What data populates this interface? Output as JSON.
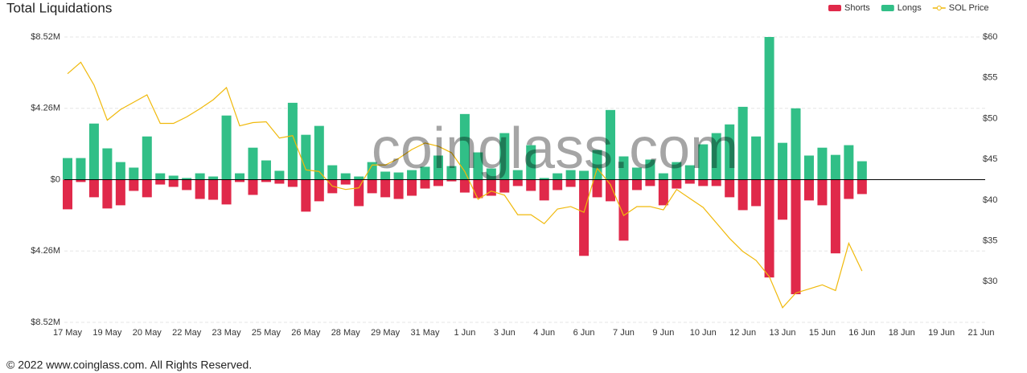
{
  "chart_data": {
    "type": "bar",
    "title": "Total Liquidations",
    "watermark": "coinglass.com",
    "footer": "© 2022 www.coinglass.com. All Rights Reserved.",
    "categories": [
      "17 May",
      null,
      null,
      "19 May",
      null,
      null,
      "20 May",
      null,
      null,
      "22 May",
      null,
      null,
      "23 May",
      null,
      null,
      "25 May",
      null,
      null,
      "26 May",
      null,
      null,
      "28 May",
      null,
      null,
      "29 May",
      null,
      null,
      "31 May",
      null,
      null,
      "1 Jun",
      null,
      null,
      "3 Jun",
      null,
      null,
      "4 Jun",
      null,
      null,
      "6 Jun",
      null,
      null,
      "7 Jun",
      null,
      null,
      "9 Jun",
      null,
      null,
      "10 Jun",
      null,
      null,
      "12 Jun",
      null,
      null,
      "13 Jun",
      null,
      null,
      "15 Jun",
      null,
      null,
      "16 Jun",
      null,
      null,
      "18 Jun",
      null,
      null,
      "19 Jun",
      null,
      null,
      "21 Jun"
    ],
    "series": [
      {
        "name": "Shorts",
        "type": "bar",
        "color": "#e0294a",
        "values": [
          -1.77,
          -0.14,
          -1.05,
          -1.72,
          -1.53,
          -0.67,
          -1.05,
          -0.29,
          -0.43,
          -0.62,
          -1.15,
          -1.2,
          -1.48,
          -0.14,
          -0.91,
          -0.14,
          -0.24,
          -0.43,
          -1.91,
          -1.29,
          -0.81,
          -0.29,
          -1.58,
          -0.81,
          -1.05,
          -1.15,
          -0.96,
          -0.53,
          -0.38,
          -0.1,
          -0.77,
          -1.1,
          -0.96,
          -0.77,
          -0.38,
          -0.67,
          -1.24,
          -0.62,
          -0.43,
          -4.55,
          -1.05,
          -1.29,
          -3.64,
          -0.62,
          -0.38,
          -1.53,
          -0.53,
          -0.24,
          -0.38,
          -0.38,
          -1.05,
          -1.82,
          -1.58,
          -5.84,
          -2.39,
          -6.84,
          -1.24,
          -1.53,
          -4.4,
          -1.15,
          -0.86,
          null,
          null,
          null,
          null,
          null,
          null,
          null,
          null,
          null
        ]
      },
      {
        "name": "Longs",
        "type": "bar",
        "color": "#31bf87",
        "values": [
          1.29,
          1.29,
          3.35,
          1.87,
          1.05,
          0.72,
          2.58,
          0.38,
          0.24,
          0.1,
          0.38,
          0.19,
          3.83,
          0.38,
          1.91,
          1.15,
          0.53,
          4.59,
          2.68,
          3.21,
          0.86,
          0.38,
          0.19,
          1.05,
          0.48,
          0.43,
          0.57,
          0.77,
          1.44,
          0.81,
          3.92,
          1.63,
          0.67,
          2.78,
          0.57,
          2.06,
          0.1,
          0.38,
          0.57,
          0.53,
          1.77,
          4.16,
          1.39,
          0.72,
          1.2,
          0.38,
          1.05,
          0.86,
          2.11,
          2.78,
          3.3,
          4.35,
          2.58,
          8.52,
          2.2,
          4.26,
          1.44,
          1.91,
          1.48,
          2.06,
          1.1,
          null,
          null,
          null,
          null,
          null,
          null,
          null,
          null,
          null
        ]
      },
      {
        "name": "SOL Price",
        "type": "line",
        "axis": "y2",
        "color": "#f0b90b",
        "values": [
          55.5,
          56.9,
          54.1,
          49.8,
          51.1,
          52.0,
          52.9,
          49.4,
          49.4,
          50.2,
          51.2,
          52.3,
          53.8,
          49.1,
          49.5,
          49.6,
          47.6,
          47.9,
          43.7,
          43.5,
          41.7,
          41.3,
          41.5,
          44.3,
          44.3,
          45.1,
          46.2,
          47.0,
          46.6,
          45.8,
          43.5,
          40.1,
          41.1,
          40.6,
          38.2,
          38.2,
          37.1,
          38.9,
          39.2,
          38.5,
          43.9,
          41.9,
          38.1,
          39.2,
          39.2,
          38.8,
          41.3,
          40.2,
          39.1,
          37.2,
          35.3,
          33.7,
          32.6,
          30.6,
          26.8,
          28.6,
          29.1,
          29.6,
          28.9,
          34.7,
          31.3,
          null,
          null,
          null,
          null,
          null,
          null,
          null,
          null,
          null
        ]
      }
    ],
    "ylim": [
      -8.52,
      8.52
    ],
    "yticks": [
      {
        "value": -8.52,
        "label": "$8.52M"
      },
      {
        "value": -4.26,
        "label": "$4.26M"
      },
      {
        "value": 0,
        "label": "$0"
      },
      {
        "value": 4.26,
        "label": "$4.26M"
      },
      {
        "value": 8.52,
        "label": "$8.52M"
      }
    ],
    "y2lim": [
      25,
      60
    ],
    "y2ticks": [
      {
        "value": 30,
        "label": "$30"
      },
      {
        "value": 35,
        "label": "$35"
      },
      {
        "value": 40,
        "label": "$40"
      },
      {
        "value": 45,
        "label": "$45"
      },
      {
        "value": 50,
        "label": "$50"
      },
      {
        "value": 55,
        "label": "$55"
      },
      {
        "value": 60,
        "label": "$60"
      }
    ],
    "grid": true,
    "legend": "top-right"
  }
}
